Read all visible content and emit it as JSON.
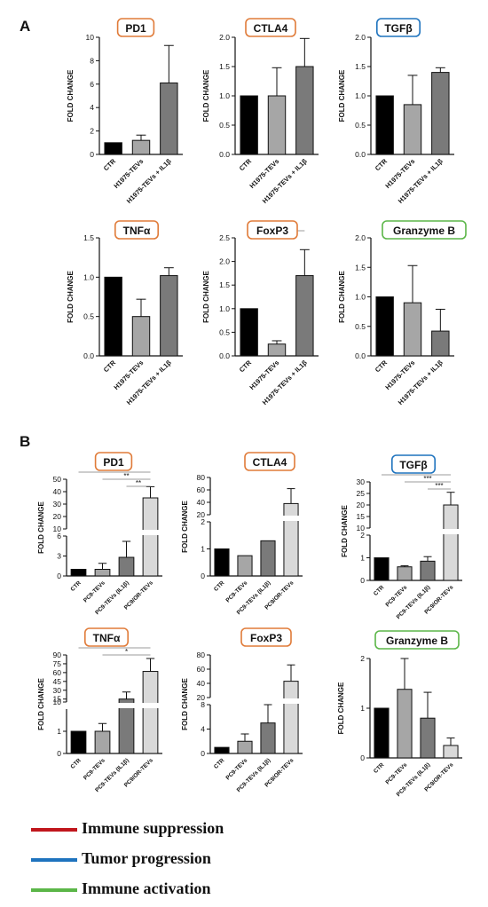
{
  "panels": {
    "a": "A",
    "b": "B"
  },
  "legend": [
    {
      "label": "Immune suppression",
      "color": "#c0161c"
    },
    {
      "label": "Tumor progression",
      "color": "#1e73be"
    },
    {
      "label": "Immune activation",
      "color": "#5bb648"
    }
  ],
  "chart_data": [
    {
      "type": "bar",
      "panel": "A",
      "title": "PD1",
      "title_color": "#e07b39",
      "ylabel": "FOLD CHANGE",
      "categories": [
        "CTR",
        "H1975-TEVs",
        "H1975-TEVs + IL1β"
      ],
      "values": [
        1.0,
        1.2,
        6.1
      ],
      "errors": [
        0,
        0.45,
        3.2
      ],
      "ylim": [
        0,
        10
      ],
      "yticks": [
        "0",
        "2",
        "4",
        "6",
        "8",
        "10"
      ]
    },
    {
      "type": "bar",
      "panel": "A",
      "title": "CTLA4",
      "title_color": "#e07b39",
      "ylabel": "FOLD CHANGE",
      "categories": [
        "CTR",
        "H1975-TEVs",
        "H1975-TEVs + IL1β"
      ],
      "values": [
        1.0,
        1.0,
        1.5
      ],
      "errors": [
        0,
        0.48,
        0.48
      ],
      "ylim": [
        0,
        2.0
      ],
      "yticks": [
        "0.0",
        "0.5",
        "1.0",
        "1.5",
        "2.0"
      ]
    },
    {
      "type": "bar",
      "panel": "A",
      "title": "TGFβ",
      "title_color": "#1e73be",
      "ylabel": "FOLD CHANGE",
      "categories": [
        "CTR",
        "H1975-TEVs",
        "H1975-TEVs + IL1β"
      ],
      "values": [
        1.0,
        0.85,
        1.4
      ],
      "errors": [
        0,
        0.5,
        0.08
      ],
      "ylim": [
        0,
        2.0
      ],
      "yticks": [
        "0.0",
        "0.5",
        "1.0",
        "1.5",
        "2.0"
      ]
    },
    {
      "type": "bar",
      "panel": "A",
      "title": "TNFα",
      "title_color": "#e07b39",
      "ylabel": "FOLD CHANGE",
      "categories": [
        "CTR",
        "H1975-TEVs",
        "H1975-TEVs + IL1β"
      ],
      "values": [
        1.0,
        0.5,
        1.02
      ],
      "errors": [
        0,
        0.22,
        0.1
      ],
      "ylim": [
        0,
        1.5
      ],
      "yticks": [
        "0.0",
        "0.5",
        "1.0",
        "1.5"
      ]
    },
    {
      "type": "bar",
      "panel": "A",
      "title": "FoxP3",
      "title_color": "#e07b39",
      "ylabel": "FOLD CHANGE",
      "categories": [
        "CTR",
        "H1975-TEVs",
        "H1975-TEVs + IL1β"
      ],
      "values": [
        1.0,
        0.25,
        1.7
      ],
      "errors": [
        0,
        0.07,
        0.55
      ],
      "ylim": [
        0,
        2.5
      ],
      "yticks": [
        "0.0",
        "0.5",
        "1.0",
        "1.5",
        "2.0",
        "2.5"
      ],
      "sig": [
        {
          "from": 1,
          "to": 2,
          "label": "*"
        }
      ]
    },
    {
      "type": "bar",
      "panel": "A",
      "title": "Granzyme B",
      "title_color": "#5bb648",
      "ylabel": "FOLD CHANGE",
      "categories": [
        "CTR",
        "H1975-TEVs",
        "H1975-TEVs + IL1β"
      ],
      "values": [
        1.0,
        0.9,
        0.42
      ],
      "errors": [
        0,
        0.63,
        0.37
      ],
      "ylim": [
        0,
        2.0
      ],
      "yticks": [
        "0.0",
        "0.5",
        "1.0",
        "1.5",
        "2.0"
      ]
    },
    {
      "type": "bar",
      "panel": "B",
      "title": "PD1",
      "title_color": "#e07b39",
      "ylabel": "FOLD CHANGE",
      "categories": [
        "CTR",
        "PC9-TEVs",
        "PC9-TEVs (IL1β)",
        "PC9/OR-TEVs"
      ],
      "values": [
        1.0,
        1.0,
        2.8,
        35
      ],
      "errors": [
        0,
        0.9,
        2.4,
        9
      ],
      "broken": true,
      "ybreak": [
        6,
        10
      ],
      "lower_ticks": [
        {
          "v": 0,
          "t": "0"
        },
        {
          "v": 3,
          "t": "3"
        },
        {
          "v": 6,
          "t": "6"
        }
      ],
      "upper_ticks": [
        {
          "v": 10,
          "t": "10"
        },
        {
          "v": 20,
          "t": "20"
        },
        {
          "v": 30,
          "t": "30"
        },
        {
          "v": 40,
          "t": "40"
        },
        {
          "v": 50,
          "t": "50"
        }
      ],
      "ylim": [
        0,
        50
      ],
      "sig": [
        {
          "from": 0,
          "to": 3,
          "label": "**"
        },
        {
          "from": 1,
          "to": 3,
          "label": "**"
        },
        {
          "from": 2,
          "to": 3,
          "label": "**"
        }
      ]
    },
    {
      "type": "bar",
      "panel": "B",
      "title": "CTLA4",
      "title_color": "#e07b39",
      "ylabel": "FOLD CHANGE",
      "categories": [
        "CTR",
        "PC9-TEVs",
        "PC9-TEVs (IL1β)",
        "PC9/OR-TEVs"
      ],
      "values": [
        1.0,
        0.75,
        1.3,
        38
      ],
      "errors": [
        0,
        0,
        0,
        24
      ],
      "broken": true,
      "ybreak": [
        2,
        20
      ],
      "lower_ticks": [
        {
          "v": 0,
          "t": "0"
        },
        {
          "v": 1,
          "t": "1"
        },
        {
          "v": 2,
          "t": "2"
        }
      ],
      "upper_ticks": [
        {
          "v": 20,
          "t": "20"
        },
        {
          "v": 40,
          "t": "40"
        },
        {
          "v": 60,
          "t": "60"
        },
        {
          "v": 80,
          "t": "80"
        }
      ],
      "ylim": [
        0,
        80
      ]
    },
    {
      "type": "bar",
      "panel": "B",
      "title": "TGFβ",
      "title_color": "#1e73be",
      "ylabel": "FOLD CHANGE",
      "categories": [
        "CTR",
        "PC9-TEVs",
        "PC9-TEVs (IL1β)",
        "PC9/OR-TEVs"
      ],
      "values": [
        1.0,
        0.6,
        0.85,
        20
      ],
      "errors": [
        0,
        0.05,
        0.2,
        5.5
      ],
      "broken": true,
      "ybreak": [
        2,
        10
      ],
      "lower_ticks": [
        {
          "v": 0,
          "t": "0"
        },
        {
          "v": 1,
          "t": "1"
        },
        {
          "v": 2,
          "t": "2"
        }
      ],
      "upper_ticks": [
        {
          "v": 10,
          "t": "10"
        },
        {
          "v": 15,
          "t": "15"
        },
        {
          "v": 20,
          "t": "20"
        },
        {
          "v": 25,
          "t": "25"
        },
        {
          "v": 30,
          "t": "30"
        }
      ],
      "ylim": [
        0,
        30
      ],
      "sig": [
        {
          "from": 0,
          "to": 3,
          "label": "***"
        },
        {
          "from": 1,
          "to": 3,
          "label": "***"
        },
        {
          "from": 2,
          "to": 3,
          "label": "***"
        }
      ]
    },
    {
      "type": "bar",
      "panel": "B",
      "title": "TNFα",
      "title_color": "#e07b39",
      "ylabel": "FOLD CHANGE",
      "categories": [
        "CTR",
        "PC9-TEVs",
        "PC9-TEVs (IL1β)",
        "PC9/OR-TEVs"
      ],
      "values": [
        1.0,
        1.0,
        15,
        62
      ],
      "errors": [
        0,
        0.35,
        12,
        22
      ],
      "broken": true,
      "ybreak": [
        2,
        10
      ],
      "lower_ticks": [
        {
          "v": 0,
          "t": "0"
        },
        {
          "v": 1,
          "t": "1"
        }
      ],
      "upper_ticks": [
        {
          "v": 10,
          "t": "10"
        },
        {
          "v": 15,
          "t": "15"
        },
        {
          "v": 30,
          "t": "30"
        },
        {
          "v": 45,
          "t": "45"
        },
        {
          "v": 60,
          "t": "60"
        },
        {
          "v": 75,
          "t": "75"
        },
        {
          "v": 90,
          "t": "90"
        }
      ],
      "ylim": [
        0,
        90
      ],
      "sig": [
        {
          "from": 0,
          "to": 3,
          "label": "*"
        },
        {
          "from": 1,
          "to": 3,
          "label": "*"
        }
      ]
    },
    {
      "type": "bar",
      "panel": "B",
      "title": "FoxP3",
      "title_color": "#e07b39",
      "ylabel": "FOLD CHANGE",
      "categories": [
        "CTR",
        "PC9-TEVs",
        "PC9-TEVs (IL1β)",
        "PC9/OR-TEVs"
      ],
      "values": [
        1.0,
        2.0,
        5.0,
        43
      ],
      "errors": [
        0,
        1.2,
        3.0,
        23
      ],
      "broken": true,
      "ybreak": [
        8,
        20
      ],
      "lower_ticks": [
        {
          "v": 0,
          "t": "0"
        },
        {
          "v": 4,
          "t": "4"
        },
        {
          "v": 8,
          "t": "8"
        }
      ],
      "upper_ticks": [
        {
          "v": 20,
          "t": "20"
        },
        {
          "v": 40,
          "t": "40"
        },
        {
          "v": 60,
          "t": "60"
        },
        {
          "v": 80,
          "t": "80"
        }
      ],
      "ylim": [
        0,
        80
      ]
    },
    {
      "type": "bar",
      "panel": "B",
      "title": "Granzyme B",
      "title_color": "#5bb648",
      "ylabel": "FOLD CHANGE",
      "categories": [
        "CTR",
        "PC9-TEVs",
        "PC9-TEVs (IL1β)",
        "PC9/OR-TEVs"
      ],
      "values": [
        1.0,
        1.38,
        0.8,
        0.25
      ],
      "errors": [
        0,
        0.62,
        0.52,
        0.15
      ],
      "ylim": [
        0,
        2
      ],
      "yticks": [
        "0",
        "1",
        "2"
      ]
    }
  ]
}
